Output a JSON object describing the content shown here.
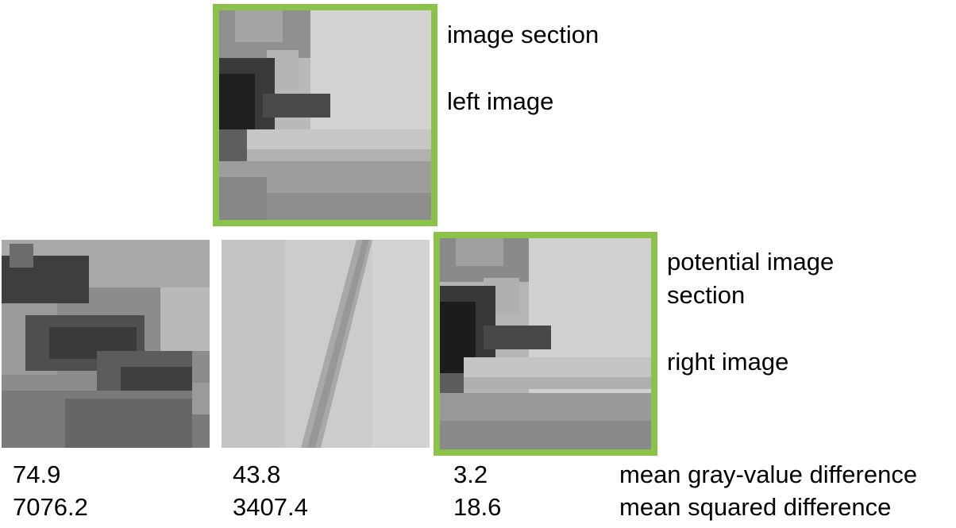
{
  "labels": {
    "image_section": "image section",
    "left_image": "left image",
    "potential_line1": "potential image",
    "potential_line2": "section",
    "right_image": "right image",
    "mean_gray_value_difference": "mean gray-value difference",
    "mean_squared_difference": "mean squared difference"
  },
  "candidates": [
    {
      "mean_gray_value_difference": "74.9",
      "mean_squared_difference": "7076.2"
    },
    {
      "mean_gray_value_difference": "43.8",
      "mean_squared_difference": "3407.4"
    },
    {
      "mean_gray_value_difference": "3.2",
      "mean_squared_difference": "18.6"
    }
  ],
  "colors": {
    "match_frame": "#8bc34a"
  }
}
